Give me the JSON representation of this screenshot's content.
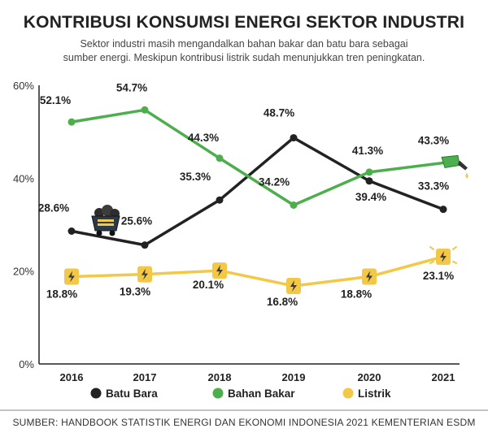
{
  "title": "KONTRIBUSI KONSUMSI ENERGI SEKTOR INDUSTRI",
  "subtitle_line1": "Sektor industri masih mengandalkan bahan bakar dan batu bara sebagai",
  "subtitle_line2": "sumber energi. Meskipun kontribusi listrik sudah menunjukkan tren peningkatan.",
  "source": "SUMBER: HANDBOOK STATISTIK ENERGI DAN EKONOMI INDONESIA 2021 KEMENTERIAN ESDM",
  "chart_data": {
    "type": "line",
    "categories": [
      "2016",
      "2017",
      "2018",
      "2019",
      "2020",
      "2021"
    ],
    "ylim": [
      0,
      60
    ],
    "yticks": [
      0,
      20,
      40,
      60
    ],
    "ytick_labels": [
      "0%",
      "20%",
      "40%",
      "60%"
    ],
    "grid": false,
    "legend_position": "bottom",
    "series": [
      {
        "name": "Batu Bara",
        "color": "#222222",
        "values": [
          28.6,
          25.6,
          35.3,
          48.7,
          39.4,
          33.3
        ],
        "labels": [
          "28.6%",
          "25.6%",
          "35.3%",
          "48.7%",
          "39.4%",
          "33.3%"
        ],
        "icon": "coal-cart-icon"
      },
      {
        "name": "Bahan Bakar",
        "color": "#4cae4c",
        "values": [
          52.1,
          54.7,
          44.3,
          34.2,
          41.3,
          43.3
        ],
        "labels": [
          "52.1%",
          "54.7%",
          "44.3%",
          "34.2%",
          "41.3%",
          "43.3%"
        ],
        "icon": "fuel-nozzle-icon"
      },
      {
        "name": "Listrik",
        "color": "#f2c846",
        "values": [
          18.8,
          19.3,
          20.1,
          16.8,
          18.8,
          23.1
        ],
        "labels": [
          "18.8%",
          "19.3%",
          "20.1%",
          "16.8%",
          "18.8%",
          "23.1%"
        ],
        "icon": "lightning-bolt-icon"
      }
    ]
  }
}
